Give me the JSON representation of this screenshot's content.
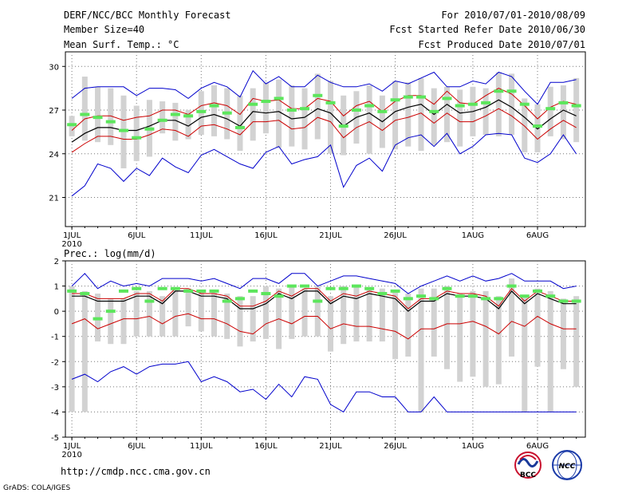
{
  "header": {
    "title": "DERF/NCC/BCC Monthly Forecast",
    "member_size": "Member Size=40",
    "variable": "Mean Surf. Temp.: °C",
    "period": "For 2010/07/01-2010/08/09",
    "started": "Fcst Started Refer Date 2010/06/30",
    "produced": "Fcst Produced Date 2010/07/01"
  },
  "footer": {
    "url": "http://cmdp.ncc.cma.gov.cn",
    "grads": "GrADS: COLA/IGES",
    "logo_bcc": "BCC",
    "logo_ncc": "NCC"
  },
  "colors": {
    "range_line": "#0000cc",
    "spread_line": "#cc0000",
    "mean_line": "#000000",
    "bar": "#d2d2d2",
    "marker": "#5ce65c"
  },
  "chart_data": [
    {
      "type": "box-line",
      "title": "Mean Surf. Temp.: °C",
      "x_tick_labels": [
        "1JUL",
        "6JUL",
        "11JUL",
        "16JUL",
        "21JUL",
        "26JUL",
        "1AUG",
        "6AUG"
      ],
      "x_tick_days": [
        1,
        6,
        11,
        16,
        21,
        26,
        32,
        37
      ],
      "x_year_label": "2010",
      "xlim": [
        1,
        40
      ],
      "ylim": [
        19,
        31
      ],
      "y_ticks": [
        21,
        24,
        27,
        30
      ],
      "days": [
        1,
        2,
        3,
        4,
        5,
        6,
        7,
        8,
        9,
        10,
        11,
        12,
        13,
        14,
        15,
        16,
        17,
        18,
        19,
        20,
        21,
        22,
        23,
        24,
        25,
        26,
        27,
        28,
        29,
        30,
        31,
        32,
        33,
        34,
        35,
        36,
        37,
        38,
        39,
        40
      ],
      "max": [
        27.8,
        28.5,
        28.6,
        28.6,
        28.6,
        28.0,
        28.5,
        28.5,
        28.4,
        27.8,
        28.5,
        28.9,
        28.6,
        27.9,
        29.7,
        28.8,
        29.3,
        28.6,
        28.6,
        29.4,
        28.9,
        28.6,
        28.6,
        28.8,
        28.3,
        29.0,
        28.8,
        29.2,
        29.6,
        28.6,
        28.6,
        29.0,
        28.8,
        29.6,
        29.3,
        28.3,
        27.4,
        28.9,
        28.9,
        29.1
      ],
      "min": [
        21.1,
        21.8,
        23.3,
        23.0,
        22.1,
        23.0,
        22.5,
        23.7,
        23.1,
        22.7,
        23.9,
        24.3,
        23.8,
        23.3,
        23.0,
        24.1,
        24.5,
        23.3,
        23.6,
        23.8,
        24.6,
        21.7,
        23.2,
        23.7,
        22.8,
        24.6,
        25.1,
        25.3,
        24.5,
        25.4,
        24.0,
        24.5,
        25.3,
        25.4,
        25.3,
        23.7,
        23.4,
        24.0,
        25.3,
        24.0
      ],
      "upper": [
        25.6,
        26.4,
        26.6,
        26.6,
        26.3,
        26.5,
        26.6,
        27.0,
        27.0,
        26.7,
        27.3,
        27.5,
        27.3,
        26.7,
        27.8,
        27.6,
        27.7,
        27.1,
        27.1,
        27.8,
        27.6,
        26.6,
        27.3,
        27.6,
        26.9,
        27.6,
        28.0,
        28.0,
        27.4,
        28.3,
        27.5,
        27.4,
        28.0,
        28.5,
        28.1,
        27.3,
        26.4,
        27.2,
        27.6,
        27.4
      ],
      "mean": [
        24.8,
        25.4,
        25.8,
        25.8,
        25.6,
        25.6,
        25.9,
        26.3,
        26.3,
        25.9,
        26.5,
        26.7,
        26.4,
        25.9,
        26.9,
        26.8,
        26.9,
        26.4,
        26.5,
        27.1,
        26.8,
        25.9,
        26.5,
        26.8,
        26.2,
        26.9,
        27.2,
        27.4,
        26.7,
        27.4,
        26.8,
        26.9,
        27.2,
        27.7,
        27.2,
        26.5,
        25.7,
        26.4,
        27.0,
        26.6
      ],
      "lower": [
        24.1,
        24.7,
        25.2,
        25.2,
        25.0,
        25.0,
        25.3,
        25.7,
        25.6,
        25.2,
        25.9,
        26.0,
        25.7,
        25.3,
        26.2,
        26.2,
        26.3,
        25.7,
        25.8,
        26.5,
        26.2,
        25.1,
        25.8,
        26.2,
        25.6,
        26.3,
        26.5,
        26.8,
        26.1,
        26.8,
        26.2,
        26.2,
        26.6,
        27.1,
        26.6,
        25.9,
        25.0,
        25.7,
        26.3,
        25.8
      ],
      "bar_top": [
        26.6,
        29.3,
        28.6,
        28.5,
        28.0,
        27.3,
        27.7,
        27.6,
        27.5,
        27.0,
        28.3,
        28.7,
        28.5,
        28.0,
        28.5,
        28.9,
        29.1,
        28.7,
        28.5,
        29.5,
        29.0,
        28.0,
        28.3,
        28.7,
        28.0,
        29.0,
        28.9,
        29.2,
        28.5,
        28.6,
        28.4,
        28.6,
        28.5,
        29.6,
        29.5,
        27.8,
        27.4,
        28.6,
        28.7,
        29.2
      ],
      "bar_bottom": [
        25.2,
        24.9,
        24.8,
        24.6,
        23.0,
        23.5,
        23.8,
        25.4,
        24.9,
        25.0,
        25.3,
        25.2,
        25.0,
        24.2,
        24.9,
        25.4,
        24.4,
        24.5,
        24.3,
        25.0,
        24.0,
        23.9,
        24.7,
        24.0,
        24.4,
        24.3,
        24.5,
        24.2,
        24.6,
        24.8,
        24.5,
        25.2,
        25.3,
        25.2,
        25.3,
        24.1,
        24.1,
        25.2,
        25.0,
        24.8
      ],
      "markers": [
        26.0,
        26.7,
        26.5,
        26.2,
        25.6,
        25.1,
        25.7,
        26.3,
        26.7,
        26.6,
        26.9,
        27.3,
        26.8,
        25.8,
        27.4,
        27.6,
        27.8,
        27.0,
        27.1,
        28.0,
        27.5,
        25.9,
        27.0,
        27.3,
        26.9,
        27.7,
        27.9,
        27.9,
        26.9,
        27.8,
        27.3,
        27.4,
        27.5,
        28.3,
        28.3,
        27.4,
        25.9,
        27.1,
        27.5,
        27.3
      ]
    },
    {
      "type": "box-line",
      "title": "Prec.: log(mm/d)",
      "x_tick_labels": [
        "1JUL",
        "6JUL",
        "11JUL",
        "16JUL",
        "21JUL",
        "26JUL",
        "1AUG",
        "6AUG"
      ],
      "x_tick_days": [
        1,
        6,
        11,
        16,
        21,
        26,
        32,
        37
      ],
      "x_year_label": "2010",
      "xlim": [
        1,
        40
      ],
      "ylim": [
        -5,
        2
      ],
      "y_ticks": [
        -5,
        -4,
        -3,
        -2,
        -1,
        0,
        1,
        2
      ],
      "days": [
        1,
        2,
        3,
        4,
        5,
        6,
        7,
        8,
        9,
        10,
        11,
        12,
        13,
        14,
        15,
        16,
        17,
        18,
        19,
        20,
        21,
        22,
        23,
        24,
        25,
        26,
        27,
        28,
        29,
        30,
        31,
        32,
        33,
        34,
        35,
        36,
        37,
        38,
        39,
        40
      ],
      "max": [
        1.0,
        1.5,
        0.9,
        1.2,
        1.0,
        1.1,
        1.0,
        1.3,
        1.3,
        1.3,
        1.2,
        1.3,
        1.1,
        0.9,
        1.3,
        1.3,
        1.1,
        1.5,
        1.5,
        1.0,
        1.2,
        1.4,
        1.4,
        1.3,
        1.2,
        1.1,
        0.7,
        1.0,
        1.2,
        1.4,
        1.2,
        1.4,
        1.2,
        1.3,
        1.5,
        1.2,
        1.2,
        1.2,
        0.9,
        1.0
      ],
      "min": [
        -2.7,
        -2.5,
        -2.8,
        -2.4,
        -2.2,
        -2.5,
        -2.2,
        -2.1,
        -2.1,
        -2.0,
        -2.8,
        -2.6,
        -2.8,
        -3.2,
        -3.1,
        -3.5,
        -2.9,
        -3.4,
        -2.6,
        -2.7,
        -3.7,
        -4.0,
        -3.2,
        -3.2,
        -3.4,
        -3.4,
        -4.0,
        -4.0,
        -3.4,
        -4.0,
        -4.0,
        -4.0,
        -4.0,
        -4.0,
        -4.0,
        -4.0,
        -4.0,
        -4.0,
        -4.0,
        -4.0
      ],
      "upper": [
        0.7,
        0.7,
        0.5,
        0.5,
        0.5,
        0.7,
        0.7,
        0.4,
        0.9,
        0.9,
        0.7,
        0.7,
        0.6,
        0.2,
        0.2,
        0.4,
        0.8,
        0.6,
        0.9,
        0.9,
        0.4,
        0.7,
        0.6,
        0.8,
        0.7,
        0.6,
        0.1,
        0.5,
        0.5,
        0.8,
        0.7,
        0.7,
        0.6,
        0.2,
        0.9,
        0.4,
        0.8,
        0.6,
        0.4,
        0.4
      ],
      "mean": [
        0.6,
        0.6,
        0.4,
        0.4,
        0.4,
        0.6,
        0.6,
        0.3,
        0.8,
        0.8,
        0.6,
        0.6,
        0.5,
        0.1,
        0.1,
        0.3,
        0.7,
        0.5,
        0.8,
        0.8,
        0.3,
        0.6,
        0.5,
        0.7,
        0.6,
        0.5,
        0.0,
        0.4,
        0.4,
        0.7,
        0.6,
        0.6,
        0.5,
        0.1,
        0.8,
        0.3,
        0.7,
        0.5,
        0.3,
        0.3
      ],
      "lower": [
        -0.5,
        -0.3,
        -0.7,
        -0.5,
        -0.3,
        -0.3,
        -0.2,
        -0.5,
        -0.2,
        -0.1,
        -0.3,
        -0.3,
        -0.5,
        -0.8,
        -0.9,
        -0.5,
        -0.3,
        -0.5,
        -0.2,
        -0.2,
        -0.7,
        -0.5,
        -0.6,
        -0.6,
        -0.7,
        -0.8,
        -1.1,
        -0.7,
        -0.7,
        -0.5,
        -0.5,
        -0.4,
        -0.6,
        -0.9,
        -0.4,
        -0.6,
        -0.2,
        -0.5,
        -0.7,
        -0.7
      ],
      "bar_top": [
        1.0,
        0.8,
        0.7,
        0.5,
        0.5,
        0.8,
        0.8,
        0.6,
        0.9,
        0.9,
        0.8,
        0.8,
        0.7,
        0.6,
        0.6,
        1.0,
        0.9,
        1.0,
        0.9,
        1.0,
        0.6,
        1.0,
        1.0,
        0.9,
        0.9,
        0.8,
        0.7,
        0.9,
        0.9,
        1.0,
        0.7,
        0.8,
        0.8,
        0.6,
        1.3,
        0.6,
        0.9,
        0.8,
        0.5,
        0.6
      ],
      "bar_bottom": [
        -4.0,
        -4.0,
        -1.2,
        -1.3,
        -1.3,
        -1.0,
        -1.0,
        -1.0,
        -1.0,
        -0.6,
        -0.8,
        -1.0,
        -1.1,
        -1.4,
        -1.2,
        -1.1,
        -1.5,
        -1.1,
        -1.0,
        -1.0,
        -1.6,
        -1.3,
        -1.2,
        -1.2,
        -1.2,
        -1.9,
        -1.8,
        -4.0,
        -1.8,
        -2.3,
        -2.8,
        -2.6,
        -3.0,
        -2.9,
        -1.8,
        -4.0,
        -2.2,
        -4.0,
        -2.3,
        -3.0
      ],
      "markers": [
        0.8,
        0.7,
        -0.3,
        0.0,
        0.8,
        0.9,
        0.4,
        0.9,
        0.9,
        0.8,
        0.8,
        0.8,
        0.4,
        0.5,
        0.8,
        0.7,
        0.6,
        1.0,
        1.0,
        0.4,
        0.9,
        0.9,
        1.0,
        0.9,
        0.7,
        0.8,
        0.5,
        0.6,
        0.5,
        0.9,
        0.6,
        0.6,
        0.5,
        0.5,
        1.0,
        0.6,
        0.8,
        0.6,
        0.4,
        0.4
      ]
    }
  ]
}
